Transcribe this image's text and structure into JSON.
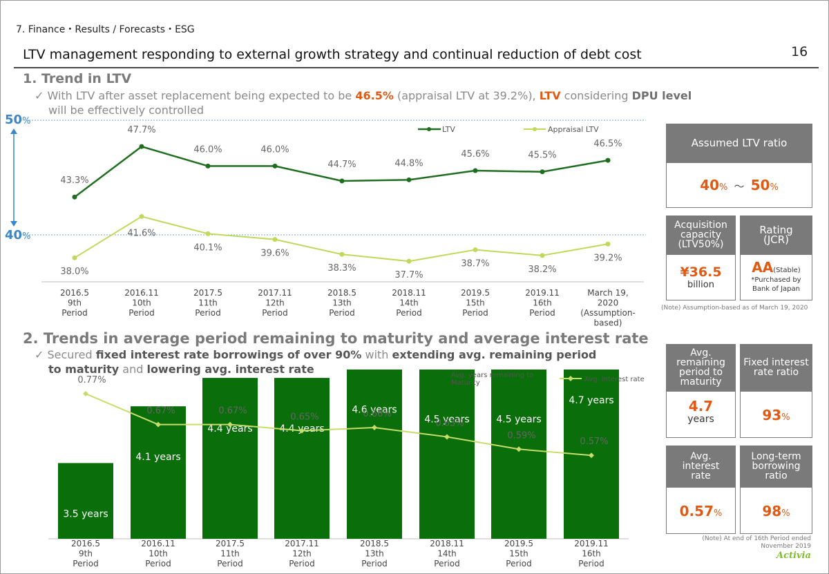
{
  "header": {
    "section": "7. Finance・Results / Forecasts・ESG",
    "title": "LTV management responding to external growth strategy and continual reduction of debt cost",
    "page_number": "16"
  },
  "section1": {
    "heading": "1. Trend in LTV",
    "bullet": {
      "mark": "✓",
      "t1": " With LTV after asset replacement being expected to be ",
      "v1": "46.5%",
      "t2": " (appraisal LTV at 39.2%), ",
      "v2": "LTV",
      "t3": " considering ",
      "v3": "DPU level",
      "t4": "will be effectively controlled"
    },
    "axis_marks": {
      "upper": "50",
      "lower": "40",
      "unit": "%"
    }
  },
  "section2": {
    "heading": "2. Trends in average period remaining to maturity and average interest rate",
    "bullet": {
      "mark": "✓",
      "t1": " Secured ",
      "v1": "fixed interest rate borrowings of over 90%",
      "t2": " with ",
      "v2": "extending avg. remaining period",
      "v3": "to maturity",
      "t3": " and ",
      "v4": "lowering avg. interest rate"
    }
  },
  "kpis": {
    "assumed_ltv": {
      "label": "Assumed LTV ratio",
      "low": "40",
      "high": "50",
      "unit": "%",
      "sep": "～"
    },
    "acquisition": {
      "label": "Acquisition capacity (LTV50%)",
      "value": "¥36.5",
      "unit": "billion"
    },
    "rating": {
      "label": "Rating (JCR)",
      "value": "AA",
      "qualifier": "(Stable)",
      "note": "*Purchased by Bank of Japan"
    },
    "note1": "(Note) Assumption-based as of March 19, 2020",
    "avg_remaining": {
      "label": "Avg. remaining period to maturity",
      "value": "4.7",
      "unit": "years"
    },
    "fixed_rate": {
      "label": "Fixed interest rate ratio",
      "value": "93",
      "unit": "%"
    },
    "avg_interest": {
      "label": "Avg. interest rate",
      "value": "0.57",
      "unit": "%"
    },
    "long_term": {
      "label": "Long-term borrowing ratio",
      "value": "98",
      "unit": "%"
    },
    "note2": "(Note) At end of 16th Period ended November 2019"
  },
  "logo": "Activia",
  "chart_data": [
    {
      "type": "line",
      "categories": [
        "2016.5\n9th\nPeriod",
        "2016.11\n10th\nPeriod",
        "2017.5\n11th\nPeriod",
        "2017.11\n12th\nPeriod",
        "2018.5\n13th\nPeriod",
        "2018.11\n14th\nPeriod",
        "2019.5\n15th\nPeriod",
        "2019.11\n16th\nPeriod",
        "March 19,\n2020\n(Assumption-\nbased)"
      ],
      "series": [
        {
          "name": "LTV",
          "values": [
            43.3,
            47.7,
            46.0,
            46.0,
            44.7,
            44.8,
            45.6,
            45.5,
            46.5
          ],
          "labels": [
            "43.3%",
            "47.7%",
            "46.0%",
            "46.0%",
            "44.7%",
            "44.8%",
            "45.6%",
            "45.5%",
            "46.5%"
          ],
          "color": "#1f6e1f"
        },
        {
          "name": "Appraisal LTV",
          "values": [
            38.0,
            41.6,
            40.1,
            39.6,
            38.3,
            37.7,
            38.7,
            38.2,
            39.2
          ],
          "labels": [
            "38.0%",
            "41.6%",
            "40.1%",
            "39.6%",
            "38.3%",
            "37.7%",
            "38.7%",
            "38.2%",
            "39.2%"
          ],
          "color": "#bfd95a"
        }
      ],
      "reference_lines": [
        50,
        40
      ],
      "ylim": [
        36,
        50
      ]
    },
    {
      "type": "bar",
      "categories": [
        "2016.5\n9th\nPeriod",
        "2016.11\n10th\nPeriod",
        "2017.5\n11th\nPeriod",
        "2017.11\n12th\nPeriod",
        "2018.5\n13th\nPeriod",
        "2018.11\n14th\nPeriod",
        "2019.5\n15th\nPeriod",
        "2019.11\n16th\nPeriod"
      ],
      "series": [
        {
          "name": "Avg. years remaining to Maturity",
          "values": [
            3.5,
            4.1,
            4.4,
            4.4,
            4.6,
            4.5,
            4.5,
            4.7
          ],
          "labels": [
            "3.5 years",
            "4.1 years",
            "4.4 years",
            "4.4 years",
            "4.6 years",
            "4.5 years",
            "4.5 years",
            "4.7 years"
          ],
          "color": "#0a6e0a"
        },
        {
          "name": "Avg. interest rate",
          "values": [
            0.77,
            0.67,
            0.67,
            0.65,
            0.66,
            0.63,
            0.59,
            0.57
          ],
          "labels": [
            "0.77%",
            "0.67%",
            "0.67%",
            "0.65%",
            "0.66%",
            "0.63%",
            "0.59%",
            "0.57%"
          ],
          "color": "#c6dd6a"
        }
      ]
    }
  ]
}
